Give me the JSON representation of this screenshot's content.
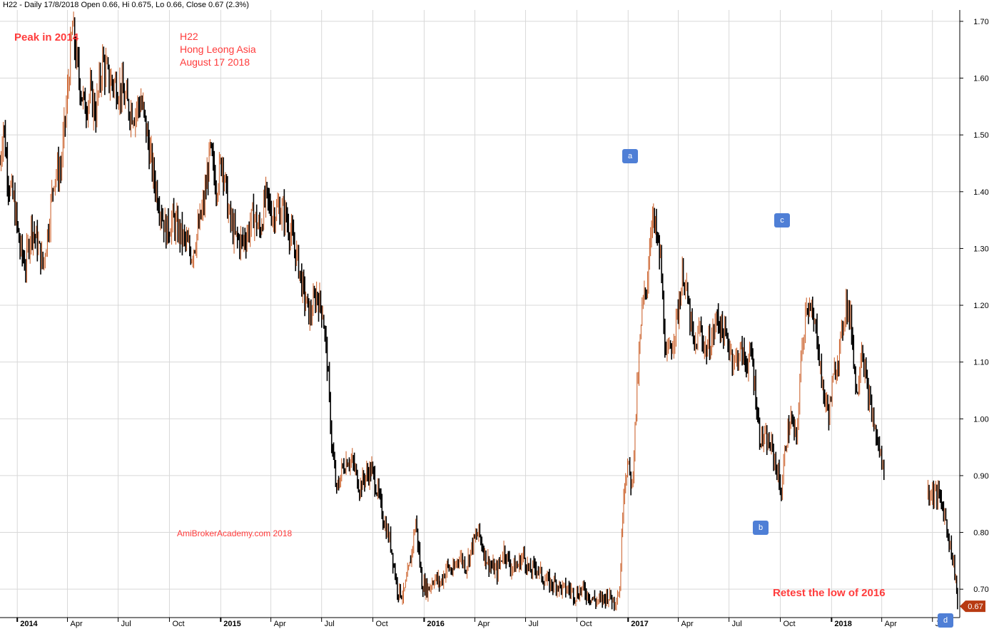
{
  "header": {
    "title": "H22 - Daily 17/8/2018 Open 0.66, Hi 0.675, Lo 0.66, Close 0.67 (2.3%)"
  },
  "annotations": {
    "peak": "Peak in 2014",
    "ticker": "H22",
    "company": "Hong Leong Asia",
    "date": "August 17 2018",
    "watermark": "AmiBrokerAcademy.com  2018",
    "retest": "Retest the low of 2016",
    "a": "a",
    "b": "b",
    "c": "c",
    "d": "d"
  },
  "colors": {
    "up": "#c8571e",
    "down": "#000000",
    "grid": "#d8d8d8",
    "annotation": "#ff3b3b",
    "marker": "#4f7fd6",
    "price_tag": "#b83a12"
  },
  "chart_data": {
    "type": "line",
    "subtype": "ohlc-bar",
    "ylim": [
      0.65,
      1.72
    ],
    "y_ticks": [
      "0.70",
      "0.80",
      "0.90",
      "1.00",
      "1.10",
      "1.20",
      "1.30",
      "1.40",
      "1.50",
      "1.60",
      "1.70"
    ],
    "x_ticks": [
      "2014",
      "Apr",
      "Jul",
      "Oct",
      "2015",
      "Apr",
      "Jul",
      "Oct",
      "2016",
      "Apr",
      "Jul",
      "Oct",
      "2017",
      "Apr",
      "Jul",
      "Oct",
      "2018",
      "Apr",
      "Jul"
    ],
    "last_price": "0.67",
    "grid": true,
    "series": [
      {
        "values": [
          [
            "2013-12-01",
            1.45
          ],
          [
            "2013-12-07",
            1.52
          ],
          [
            "2013-12-16",
            1.42
          ],
          [
            "2013-12-26",
            1.38
          ],
          [
            "2014-01-06",
            1.3
          ],
          [
            "2014-01-16",
            1.27
          ],
          [
            "2014-01-26",
            1.34
          ],
          [
            "2014-02-06",
            1.31
          ],
          [
            "2014-02-16",
            1.27
          ],
          [
            "2014-02-26",
            1.34
          ],
          [
            "2014-03-08",
            1.43
          ],
          [
            "2014-03-20",
            1.44
          ],
          [
            "2014-04-01",
            1.57
          ],
          [
            "2014-04-10",
            1.69
          ],
          [
            "2014-04-20",
            1.61
          ],
          [
            "2014-05-01",
            1.55
          ],
          [
            "2014-05-12",
            1.57
          ],
          [
            "2014-05-22",
            1.54
          ],
          [
            "2014-06-03",
            1.63
          ],
          [
            "2014-06-13",
            1.6
          ],
          [
            "2014-06-24",
            1.59
          ],
          [
            "2014-07-06",
            1.58
          ],
          [
            "2014-07-18",
            1.55
          ],
          [
            "2014-07-30",
            1.54
          ],
          [
            "2014-08-11",
            1.56
          ],
          [
            "2014-08-22",
            1.5
          ],
          [
            "2014-09-02",
            1.43
          ],
          [
            "2014-09-13",
            1.38
          ],
          [
            "2014-09-25",
            1.33
          ],
          [
            "2014-10-07",
            1.35
          ],
          [
            "2014-10-18",
            1.33
          ],
          [
            "2014-10-30",
            1.31
          ],
          [
            "2014-11-10",
            1.29
          ],
          [
            "2014-11-21",
            1.33
          ],
          [
            "2014-12-02",
            1.38
          ],
          [
            "2014-12-13",
            1.47
          ],
          [
            "2014-12-24",
            1.41
          ],
          [
            "2015-01-04",
            1.46
          ],
          [
            "2015-01-15",
            1.36
          ],
          [
            "2015-01-27",
            1.32
          ],
          [
            "2015-02-08",
            1.31
          ],
          [
            "2015-02-19",
            1.33
          ],
          [
            "2015-03-01",
            1.36
          ],
          [
            "2015-03-12",
            1.33
          ],
          [
            "2015-03-23",
            1.39
          ],
          [
            "2015-04-04",
            1.36
          ],
          [
            "2015-04-15",
            1.37
          ],
          [
            "2015-04-27",
            1.36
          ],
          [
            "2015-05-08",
            1.32
          ],
          [
            "2015-05-19",
            1.28
          ],
          [
            "2015-05-30",
            1.22
          ],
          [
            "2015-06-10",
            1.18
          ],
          [
            "2015-06-22",
            1.22
          ],
          [
            "2015-07-03",
            1.19
          ],
          [
            "2015-07-11",
            1.1
          ],
          [
            "2015-07-19",
            0.96
          ],
          [
            "2015-07-28",
            0.87
          ],
          [
            "2015-08-06",
            0.91
          ],
          [
            "2015-08-16",
            0.93
          ],
          [
            "2015-08-27",
            0.92
          ],
          [
            "2015-09-07",
            0.88
          ],
          [
            "2015-09-18",
            0.9
          ],
          [
            "2015-09-29",
            0.91
          ],
          [
            "2015-10-10",
            0.87
          ],
          [
            "2015-10-21",
            0.82
          ],
          [
            "2015-11-02",
            0.78
          ],
          [
            "2015-11-14",
            0.7
          ],
          [
            "2015-11-25",
            0.69
          ],
          [
            "2015-12-06",
            0.74
          ],
          [
            "2015-12-17",
            0.82
          ],
          [
            "2015-12-28",
            0.71
          ],
          [
            "2016-01-08",
            0.7
          ],
          [
            "2016-01-19",
            0.72
          ],
          [
            "2016-01-30",
            0.71
          ],
          [
            "2016-02-11",
            0.74
          ],
          [
            "2016-02-22",
            0.73
          ],
          [
            "2016-03-04",
            0.76
          ],
          [
            "2016-03-16",
            0.74
          ],
          [
            "2016-03-28",
            0.78
          ],
          [
            "2016-04-08",
            0.8
          ],
          [
            "2016-04-19",
            0.76
          ],
          [
            "2016-04-30",
            0.74
          ],
          [
            "2016-05-11",
            0.73
          ],
          [
            "2016-05-23",
            0.77
          ],
          [
            "2016-06-04",
            0.74
          ],
          [
            "2016-06-16",
            0.74
          ],
          [
            "2016-06-27",
            0.76
          ],
          [
            "2016-07-08",
            0.73
          ],
          [
            "2016-07-20",
            0.74
          ],
          [
            "2016-08-01",
            0.72
          ],
          [
            "2016-08-13",
            0.71
          ],
          [
            "2016-08-25",
            0.71
          ],
          [
            "2016-09-05",
            0.7
          ],
          [
            "2016-09-17",
            0.7
          ],
          [
            "2016-09-29",
            0.69
          ],
          [
            "2016-10-10",
            0.7
          ],
          [
            "2016-10-22",
            0.69
          ],
          [
            "2016-11-02",
            0.68
          ],
          [
            "2016-11-14",
            0.68
          ],
          [
            "2016-11-25",
            0.69
          ],
          [
            "2016-12-07",
            0.68
          ],
          [
            "2016-12-17",
            0.7
          ],
          [
            "2016-12-24",
            0.88
          ],
          [
            "2016-12-31",
            0.92
          ],
          [
            "2017-01-08",
            0.88
          ],
          [
            "2017-01-17",
            1.05
          ],
          [
            "2017-01-26",
            1.19
          ],
          [
            "2017-02-05",
            1.25
          ],
          [
            "2017-02-12",
            1.36
          ],
          [
            "2017-02-19",
            1.33
          ],
          [
            "2017-02-28",
            1.28
          ],
          [
            "2017-03-10",
            1.1
          ],
          [
            "2017-03-20",
            1.13
          ],
          [
            "2017-03-30",
            1.18
          ],
          [
            "2017-04-10",
            1.26
          ],
          [
            "2017-04-20",
            1.19
          ],
          [
            "2017-04-30",
            1.12
          ],
          [
            "2017-05-10",
            1.16
          ],
          [
            "2017-05-20",
            1.12
          ],
          [
            "2017-05-31",
            1.14
          ],
          [
            "2017-06-10",
            1.18
          ],
          [
            "2017-06-21",
            1.15
          ],
          [
            "2017-07-01",
            1.13
          ],
          [
            "2017-07-11",
            1.1
          ],
          [
            "2017-07-21",
            1.12
          ],
          [
            "2017-08-01",
            1.1
          ],
          [
            "2017-08-11",
            1.11
          ],
          [
            "2017-08-18",
            1.04
          ],
          [
            "2017-08-25",
            0.97
          ],
          [
            "2017-09-05",
            0.96
          ],
          [
            "2017-09-15",
            0.95
          ],
          [
            "2017-09-25",
            0.91
          ],
          [
            "2017-10-03",
            0.87
          ],
          [
            "2017-10-11",
            0.96
          ],
          [
            "2017-10-20",
            1.0
          ],
          [
            "2017-10-30",
            0.96
          ],
          [
            "2017-11-07",
            1.1
          ],
          [
            "2017-11-17",
            1.21
          ],
          [
            "2017-11-26",
            1.18
          ],
          [
            "2017-12-06",
            1.15
          ],
          [
            "2017-12-16",
            1.05
          ],
          [
            "2017-12-27",
            1.01
          ],
          [
            "2018-01-06",
            1.08
          ],
          [
            "2018-01-17",
            1.13
          ],
          [
            "2018-01-27",
            1.21
          ],
          [
            "2018-02-06",
            1.16
          ],
          [
            "2018-02-15",
            1.04
          ],
          [
            "2018-02-24",
            1.13
          ],
          [
            "2018-03-06",
            1.05
          ],
          [
            "2018-03-16",
            1.0
          ],
          [
            "2018-03-26",
            0.95
          ],
          [
            "2018-04-05",
            0.91
          ],
          [
            "2018-04-15",
            0.99
          ],
          [
            "2018-04-25",
            0.96
          ],
          [
            "2018-05-05",
            0.97
          ],
          [
            "2018-05-15",
            0.96
          ],
          [
            "2018-05-25",
            0.96
          ],
          [
            "2018-06-05",
            0.93
          ],
          [
            "2018-06-15",
            0.89
          ],
          [
            "2018-06-25",
            0.87
          ],
          [
            "2018-07-05",
            0.87
          ],
          [
            "2018-07-15",
            0.86
          ],
          [
            "2018-07-25",
            0.82
          ],
          [
            "2018-08-12",
            0.72
          ],
          [
            "2018-08-15",
            0.67
          ],
          [
            "2018-08-17",
            0.67
          ]
        ]
      }
    ]
  }
}
